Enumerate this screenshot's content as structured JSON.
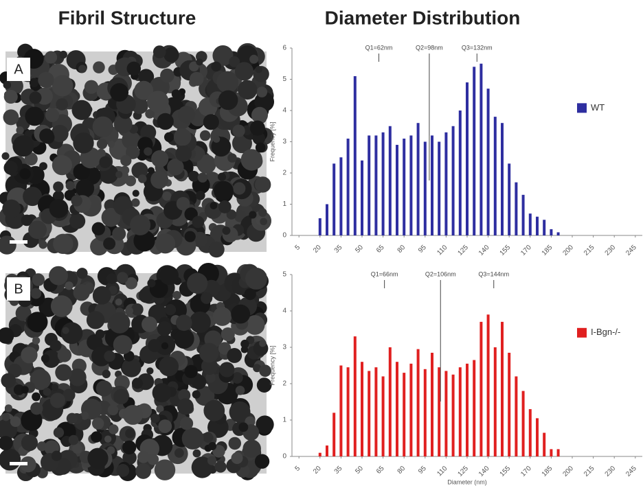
{
  "headings": [
    "Fibril Structure",
    "Diameter Distribution"
  ],
  "panels": [
    "A",
    "B"
  ],
  "chart_data": [
    {
      "type": "bar",
      "y_label": "Frequency [%]",
      "x": [
        20,
        25,
        30,
        35,
        40,
        45,
        50,
        55,
        60,
        65,
        70,
        75,
        80,
        85,
        90,
        95,
        100,
        105,
        110,
        115,
        120,
        125,
        130,
        135,
        140,
        145,
        150,
        155,
        160,
        165,
        170,
        175,
        180,
        185,
        190
      ],
      "series": [
        {
          "name": "WT",
          "color": "#2e2ea0",
          "values": [
            0.55,
            1.0,
            2.3,
            2.5,
            3.1,
            5.1,
            2.4,
            3.2,
            3.2,
            3.3,
            3.5,
            2.9,
            3.1,
            3.2,
            3.6,
            3.0,
            3.2,
            3.0,
            3.3,
            3.5,
            4.0,
            4.9,
            5.4,
            5.5,
            4.7,
            3.8,
            3.6,
            2.3,
            1.7,
            1.3,
            0.7,
            0.6,
            0.5,
            0.2,
            0.1
          ]
        }
      ],
      "xlim": [
        0,
        250
      ],
      "xticks": [
        5,
        20,
        35,
        50,
        65,
        80,
        95,
        110,
        125,
        140,
        155,
        170,
        185,
        200,
        215,
        230,
        245
      ],
      "ylim": [
        0,
        6
      ],
      "yticks": [
        0,
        1,
        2,
        3,
        4,
        5,
        6
      ],
      "quartiles": [
        {
          "label": "Q1=62nm",
          "x": 62
        },
        {
          "label": "Q2=98nm",
          "x": 98
        },
        {
          "label": "Q3=132nm",
          "x": 132
        }
      ]
    },
    {
      "type": "bar",
      "y_label": "Frequency [%]",
      "x_label": "Diameter (nm)",
      "x": [
        20,
        25,
        30,
        35,
        40,
        45,
        50,
        55,
        60,
        65,
        70,
        75,
        80,
        85,
        90,
        95,
        100,
        105,
        110,
        115,
        120,
        125,
        130,
        135,
        140,
        145,
        150,
        155,
        160,
        165,
        170,
        175,
        180,
        185,
        190
      ],
      "series": [
        {
          "name": "I-Bgn-/-",
          "color": "#e02020",
          "values": [
            0.1,
            0.3,
            1.2,
            2.5,
            2.45,
            3.3,
            2.6,
            2.35,
            2.45,
            2.2,
            3.0,
            2.6,
            2.3,
            2.55,
            2.95,
            2.4,
            2.85,
            2.45,
            2.35,
            2.25,
            2.45,
            2.55,
            2.65,
            3.7,
            3.9,
            3.0,
            3.7,
            2.85,
            2.2,
            1.8,
            1.3,
            1.05,
            0.65,
            0.2,
            0.2
          ]
        }
      ],
      "xlim": [
        0,
        250
      ],
      "xticks": [
        5,
        20,
        35,
        50,
        65,
        80,
        95,
        110,
        125,
        140,
        155,
        170,
        185,
        200,
        215,
        230,
        245
      ],
      "ylim": [
        0,
        5
      ],
      "yticks": [
        0,
        1,
        2,
        3,
        4,
        5
      ],
      "quartiles": [
        {
          "label": "Q1=66nm",
          "x": 66
        },
        {
          "label": "Q2=106nm",
          "x": 106
        },
        {
          "label": "Q3=144nm",
          "x": 144
        }
      ]
    }
  ]
}
